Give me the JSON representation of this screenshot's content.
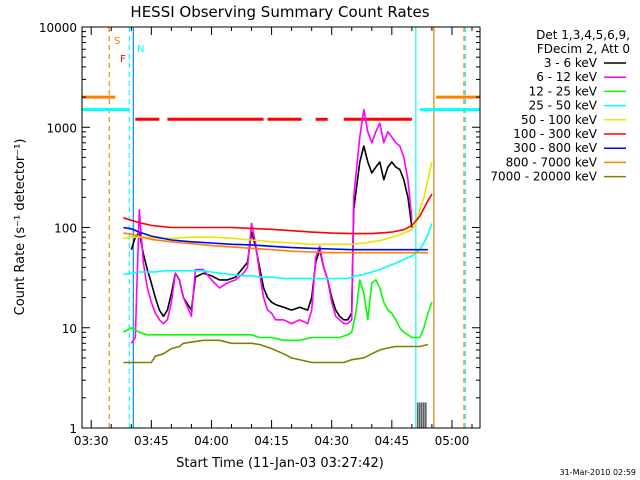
{
  "chart_data": {
    "type": "line",
    "title": "HESSI Observing Summary Count Rates",
    "xlabel": "Start Time (11-Jan-03 03:27:42)",
    "ylabel": "Count Rate (s⁻¹ detector⁻¹)",
    "yscale": "log",
    "ylim": [
      1,
      10000
    ],
    "xlim": [
      "03:27:42",
      "05:07:00"
    ],
    "y_ticks": [
      "1",
      "10",
      "100",
      "1000",
      "10000"
    ],
    "x_ticks": [
      "03:30",
      "03:45",
      "04:00",
      "04:15",
      "04:30",
      "04:45",
      "05:00"
    ],
    "legend_header": [
      "Det 1,3,4,5,6,9,",
      "FDecim 2, Att 0"
    ],
    "legend_placement": "right",
    "footer": "31-Mar-2010 02:59",
    "flag_labels": {
      "saa": "S",
      "night": "N",
      "flare": "F"
    },
    "series": [
      {
        "name": "3 - 6 keV",
        "color": "#000000",
        "x": [
          "03:40:00",
          "03:41:00",
          "03:42:00",
          "03:43:00",
          "03:44:00",
          "03:45:00",
          "03:46:00",
          "03:47:00",
          "03:48:00",
          "03:49:00",
          "03:50:00",
          "03:51:00",
          "03:52:00",
          "03:53:00",
          "03:55:00",
          "03:56:00",
          "03:58:00",
          "04:00:00",
          "04:02:00",
          "04:04:00",
          "04:06:00",
          "04:08:00",
          "04:09:00",
          "04:10:00",
          "04:11:00",
          "04:12:00",
          "04:13:00",
          "04:14:00",
          "04:15:00",
          "04:16:00",
          "04:18:00",
          "04:20:00",
          "04:22:00",
          "04:24:00",
          "04:25:00",
          "04:26:00",
          "04:27:00",
          "04:28:00",
          "04:29:00",
          "04:30:00",
          "04:31:00",
          "04:32:00",
          "04:33:00",
          "04:34:00",
          "04:35:00",
          "04:35:30",
          "04:37:00",
          "04:38:00",
          "04:39:00",
          "04:40:00",
          "04:41:00",
          "04:42:00",
          "04:43:00",
          "04:44:00",
          "04:45:00",
          "04:46:00",
          "04:47:00",
          "04:48:00",
          "04:49:00",
          "04:50:00"
        ],
        "y": [
          60,
          80,
          90,
          55,
          38,
          28,
          20,
          15,
          13,
          15,
          22,
          35,
          30,
          20,
          15,
          32,
          35,
          33,
          30,
          30,
          32,
          40,
          45,
          90,
          65,
          40,
          25,
          20,
          18,
          17,
          16,
          15,
          16,
          15,
          20,
          45,
          60,
          40,
          30,
          20,
          15,
          13,
          12,
          12,
          14,
          150,
          450,
          650,
          450,
          350,
          400,
          450,
          300,
          400,
          450,
          400,
          380,
          300,
          200,
          100
        ]
      },
      {
        "name": "6 - 12 keV",
        "color": "#ff00ff",
        "x": [
          "03:40:00",
          "03:41:00",
          "03:42:00",
          "03:43:00",
          "03:44:00",
          "03:45:00",
          "03:46:00",
          "03:47:00",
          "03:48:00",
          "03:49:00",
          "03:50:00",
          "03:51:00",
          "03:52:00",
          "03:53:00",
          "03:55:00",
          "03:56:00",
          "03:58:00",
          "04:00:00",
          "04:02:00",
          "04:04:00",
          "04:06:00",
          "04:08:00",
          "04:09:00",
          "04:10:00",
          "04:11:00",
          "04:12:00",
          "04:13:00",
          "04:14:00",
          "04:15:00",
          "04:16:00",
          "04:18:00",
          "04:20:00",
          "04:22:00",
          "04:24:00",
          "04:25:00",
          "04:26:00",
          "04:27:00",
          "04:28:00",
          "04:29:00",
          "04:30:00",
          "04:31:00",
          "04:32:00",
          "04:33:00",
          "04:34:00",
          "04:35:00",
          "04:35:30",
          "04:37:00",
          "04:38:00",
          "04:39:00",
          "04:40:00",
          "04:41:00",
          "04:42:00",
          "04:43:00",
          "04:44:00",
          "04:45:00",
          "04:46:00",
          "04:47:00",
          "04:48:00",
          "04:49:00",
          "04:50:00"
        ],
        "y": [
          7,
          8,
          150,
          45,
          25,
          18,
          14,
          12,
          11,
          12,
          18,
          35,
          30,
          20,
          13,
          38,
          38,
          30,
          25,
          28,
          30,
          35,
          40,
          110,
          70,
          35,
          20,
          15,
          14,
          12,
          12,
          11,
          12,
          11,
          15,
          50,
          65,
          40,
          30,
          18,
          13,
          12,
          11,
          11,
          12,
          200,
          800,
          1500,
          900,
          700,
          900,
          1100,
          700,
          900,
          800,
          700,
          650,
          500,
          300,
          120
        ]
      },
      {
        "name": "12 - 25 keV",
        "color": "#00ff00",
        "x": [
          "03:38:00",
          "03:40:00",
          "03:42:00",
          "03:44:00",
          "03:46:00",
          "03:48:00",
          "03:50:00",
          "03:52:00",
          "03:55:00",
          "03:58:00",
          "04:00:00",
          "04:02:00",
          "04:05:00",
          "04:08:00",
          "04:10:00",
          "04:12:00",
          "04:15:00",
          "04:18:00",
          "04:20:00",
          "04:22:00",
          "04:25:00",
          "04:28:00",
          "04:30:00",
          "04:32:00",
          "04:34:00",
          "04:35:00",
          "04:36:00",
          "04:37:00",
          "04:38:00",
          "04:39:00",
          "04:40:00",
          "04:41:00",
          "04:42:00",
          "04:43:00",
          "04:44:00",
          "04:45:00",
          "04:46:00",
          "04:47:00",
          "04:48:00",
          "04:49:00",
          "04:50:00",
          "04:52:00",
          "04:53:00",
          "04:54:00",
          "04:55:00"
        ],
        "y": [
          9,
          10,
          9,
          8.5,
          8.5,
          8.5,
          8.5,
          8.5,
          8.5,
          8.5,
          8.5,
          8.5,
          8.5,
          8.5,
          8.5,
          8,
          8,
          7.5,
          7.5,
          7.5,
          8,
          8,
          8,
          8,
          8.5,
          9,
          14,
          30,
          22,
          12,
          28,
          30,
          25,
          18,
          15,
          14,
          12,
          10,
          9,
          8.5,
          8,
          8,
          10,
          14,
          18
        ]
      },
      {
        "name": "25 - 50 keV",
        "color": "#00ffff",
        "x": [
          "03:38:00",
          "03:40:00",
          "03:42:00",
          "03:44:00",
          "03:46:00",
          "03:48:00",
          "03:50:00",
          "03:52:00",
          "03:55:00",
          "03:58:00",
          "04:00:00",
          "04:02:00",
          "04:05:00",
          "04:08:00",
          "04:10:00",
          "04:12:00",
          "04:15:00",
          "04:18:00",
          "04:20:00",
          "04:22:00",
          "04:25:00",
          "04:28:00",
          "04:30:00",
          "04:32:00",
          "04:34:00",
          "04:35:00",
          "04:36:00",
          "04:38:00",
          "04:40:00",
          "04:42:00",
          "04:44:00",
          "04:46:00",
          "04:48:00",
          "04:50:00",
          "04:52:00",
          "04:53:00",
          "04:54:00",
          "04:55:00"
        ],
        "y": [
          34,
          35,
          36,
          36,
          36,
          37,
          37,
          37,
          37,
          37,
          36,
          35,
          34,
          33,
          33,
          32,
          32,
          31,
          31,
          31,
          31,
          31,
          31,
          31,
          31,
          32,
          33,
          34,
          36,
          38,
          41,
          44,
          48,
          52,
          60,
          70,
          85,
          110
        ]
      },
      {
        "name": "50 - 100 keV",
        "color": "#e6e600",
        "x": [
          "03:38:00",
          "03:40:00",
          "03:42:00",
          "03:45:00",
          "03:48:00",
          "03:50:00",
          "03:55:00",
          "04:00:00",
          "04:05:00",
          "04:10:00",
          "04:15:00",
          "04:20:00",
          "04:25:00",
          "04:30:00",
          "04:35:00",
          "04:38:00",
          "04:40:00",
          "04:42:00",
          "04:44:00",
          "04:46:00",
          "04:48:00",
          "04:50:00",
          "04:51:00",
          "04:52:00",
          "04:53:00",
          "04:54:00",
          "04:55:00"
        ],
        "y": [
          78,
          80,
          80,
          79,
          78,
          78,
          80,
          80,
          78,
          75,
          72,
          70,
          68,
          68,
          68,
          70,
          72,
          74,
          78,
          82,
          88,
          95,
          110,
          150,
          200,
          300,
          450
        ]
      },
      {
        "name": "100 - 300 keV",
        "color": "#ff0000",
        "x": [
          "03:38:00",
          "03:40:00",
          "03:42:00",
          "03:45:00",
          "03:50:00",
          "03:55:00",
          "04:00:00",
          "04:05:00",
          "04:10:00",
          "04:15:00",
          "04:20:00",
          "04:25:00",
          "04:30:00",
          "04:35:00",
          "04:40:00",
          "04:45:00",
          "04:48:00",
          "04:50:00",
          "04:52:00",
          "04:53:00",
          "04:54:00",
          "04:55:00"
        ],
        "y": [
          125,
          118,
          112,
          105,
          100,
          100,
          100,
          100,
          98,
          96,
          93,
          90,
          88,
          87,
          87,
          90,
          95,
          105,
          130,
          155,
          185,
          215
        ]
      },
      {
        "name": "300 - 800 keV",
        "color": "#0000ff",
        "x": [
          "03:38:00",
          "03:40:00",
          "03:42:00",
          "03:45:00",
          "03:50:00",
          "03:55:00",
          "04:00:00",
          "04:05:00",
          "04:10:00",
          "04:15:00",
          "04:20:00",
          "04:25:00",
          "04:30:00",
          "04:35:00",
          "04:40:00",
          "04:45:00",
          "04:48:00",
          "04:50:00",
          "04:52:00",
          "04:54:00"
        ],
        "y": [
          100,
          97,
          90,
          82,
          75,
          72,
          70,
          68,
          67,
          65,
          63,
          62,
          61,
          60,
          60,
          60,
          60,
          60,
          60,
          60
        ]
      },
      {
        "name": "800 - 7000 keV",
        "color": "#ff8000",
        "x": [
          "03:38:00",
          "03:40:00",
          "03:42:00",
          "03:45:00",
          "03:50:00",
          "03:55:00",
          "04:00:00",
          "04:05:00",
          "04:10:00",
          "04:15:00",
          "04:20:00",
          "04:25:00",
          "04:30:00",
          "04:35:00",
          "04:40:00",
          "04:45:00",
          "04:48:00",
          "04:50:00",
          "04:52:00",
          "04:54:00"
        ],
        "y": [
          88,
          86,
          82,
          76,
          72,
          69,
          66,
          64,
          62,
          60,
          58,
          57,
          56,
          56,
          56,
          56,
          56,
          56,
          56,
          56
        ]
      },
      {
        "name": "7000 - 20000 keV",
        "color": "#808000",
        "x": [
          "03:38:00",
          "03:42:00",
          "03:45:00",
          "03:46:00",
          "03:48:00",
          "03:50:00",
          "03:52:00",
          "03:53:00",
          "03:55:00",
          "03:58:00",
          "04:00:00",
          "04:02:00",
          "04:05:00",
          "04:08:00",
          "04:10:00",
          "04:12:00",
          "04:15:00",
          "04:18:00",
          "04:20:00",
          "04:25:00",
          "04:30:00",
          "04:33:00",
          "04:35:00",
          "04:38:00",
          "04:40:00",
          "04:42:00",
          "04:44:00",
          "04:46:00",
          "04:48:00",
          "04:50:00",
          "04:52:00",
          "04:54:00"
        ],
        "y": [
          4.5,
          4.5,
          4.5,
          5.2,
          5.5,
          6.2,
          6.5,
          7,
          7.2,
          7.5,
          7.5,
          7.5,
          7,
          7,
          7,
          6.8,
          6.2,
          5.5,
          5,
          4.5,
          4.5,
          4.5,
          4.8,
          5,
          5.5,
          6,
          6.3,
          6.5,
          6.5,
          6.5,
          6.5,
          6.8
        ]
      }
    ],
    "flag_lines": {
      "saa": [
        {
          "value": 2000,
          "x_start": "03:27:42",
          "x_end": "03:36:00"
        },
        {
          "value": 2000,
          "x_start": "04:56:00",
          "x_end": "05:07:00"
        }
      ],
      "night": [
        {
          "value": 1500,
          "x_start": "03:27:42",
          "x_end": "03:39:30"
        },
        {
          "value": 1500,
          "x_start": "04:52:00",
          "x_end": "05:07:00"
        }
      ],
      "flare": [
        {
          "value": 1200,
          "x_start": "03:41:00",
          "x_end": "03:47:00"
        },
        {
          "value": 1200,
          "x_start": "03:49:00",
          "x_end": "04:13:00"
        },
        {
          "value": 1200,
          "x_start": "04:14:00",
          "x_end": "04:22:30"
        },
        {
          "value": 1200,
          "x_start": "04:26:00",
          "x_end": "04:29:00"
        },
        {
          "value": 1200,
          "x_start": "04:33:00",
          "x_end": "04:50:00"
        }
      ]
    },
    "vertical_markers": [
      {
        "x": "03:34:30",
        "color": "#ff8000",
        "style": "dashed"
      },
      {
        "x": "03:39:30",
        "color": "#00ffff",
        "style": "dashed"
      },
      {
        "x": "03:27:42",
        "color": "#00ffff",
        "style": "solid"
      },
      {
        "x": "03:40:30",
        "color": "#0088ff",
        "style": "solid"
      },
      {
        "x": "04:51:00",
        "color": "#00ffff",
        "style": "solid"
      },
      {
        "x": "04:55:30",
        "color": "#d08000",
        "style": "solid"
      },
      {
        "x": "05:03:00",
        "color": "#ff8000",
        "style": "dashed"
      },
      {
        "x": "05:03:20",
        "color": "#00ffff",
        "style": "dashed"
      }
    ],
    "black_ticks_x": [
      "04:51:30",
      "04:52:00",
      "04:52:30",
      "04:53:00",
      "04:53:30"
    ],
    "grid": false
  }
}
